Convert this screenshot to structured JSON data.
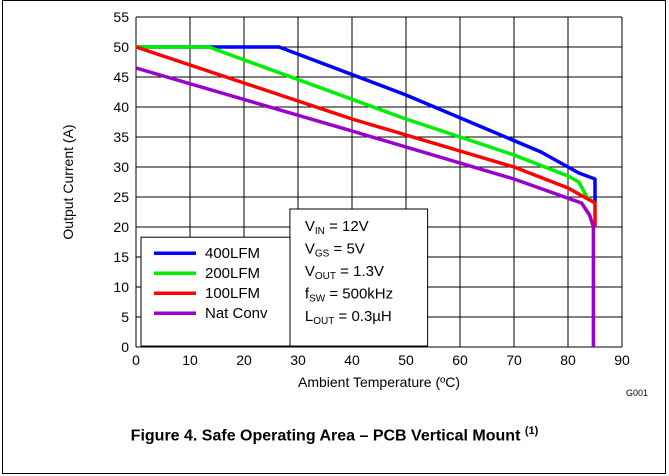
{
  "chart_data": {
    "type": "line",
    "xlabel": "Ambient Temperature (ºC)",
    "ylabel": "Output Current (A)",
    "xlim": [
      0,
      90
    ],
    "ylim": [
      0,
      55
    ],
    "xticks": [
      "0",
      "10",
      "20",
      "30",
      "40",
      "50",
      "60",
      "70",
      "80",
      "90"
    ],
    "yticks": [
      "0",
      "5",
      "10",
      "15",
      "20",
      "25",
      "30",
      "35",
      "40",
      "45",
      "50",
      "55"
    ],
    "grid": true,
    "legend_position": "bottom-left",
    "series": [
      {
        "name": "400LFM",
        "color": "#0000ff",
        "points": [
          [
            0,
            50
          ],
          [
            26.5,
            50
          ],
          [
            50,
            42
          ],
          [
            75,
            32.5
          ],
          [
            82,
            29
          ],
          [
            85,
            28
          ],
          [
            85,
            24
          ]
        ]
      },
      {
        "name": "200LFM",
        "color": "#00ee00",
        "points": [
          [
            0,
            50
          ],
          [
            13.5,
            50
          ],
          [
            50,
            38
          ],
          [
            70,
            32
          ],
          [
            80,
            28.5
          ],
          [
            82,
            27.5
          ],
          [
            83.5,
            25
          ],
          [
            85,
            24
          ]
        ]
      },
      {
        "name": "100LFM",
        "color": "#ff0000",
        "points": [
          [
            0,
            50
          ],
          [
            40,
            38
          ],
          [
            70,
            30
          ],
          [
            80,
            26.5
          ],
          [
            85,
            24
          ],
          [
            85,
            20
          ]
        ]
      },
      {
        "name": "Nat Conv",
        "color": "#9900cc",
        "points": [
          [
            0,
            46.5
          ],
          [
            40,
            36
          ],
          [
            70,
            28
          ],
          [
            82.5,
            24
          ],
          [
            84,
            22
          ],
          [
            84.7,
            20
          ],
          [
            84.7,
            0
          ]
        ]
      }
    ],
    "annotation": {
      "lines": [
        {
          "main": "V",
          "sub": "IN",
          "rest": " = 12V"
        },
        {
          "main": "V",
          "sub": "GS",
          "rest": " = 5V"
        },
        {
          "main": "V",
          "sub": "OUT",
          "rest": " = 1.3V"
        },
        {
          "main": "f",
          "sub": "SW",
          "rest": " = 500kHz"
        },
        {
          "main": "L",
          "sub": "OUT",
          "rest": " = 0.3µH"
        }
      ]
    },
    "corner_label": "G001"
  },
  "caption": {
    "text": "Figure 4. Safe Operating Area – PCB Vertical Mount",
    "note": "(1)"
  }
}
